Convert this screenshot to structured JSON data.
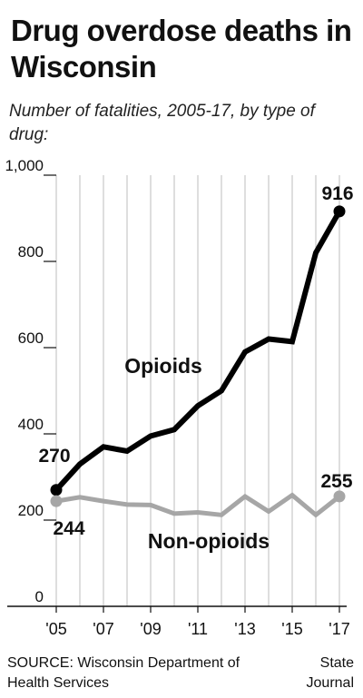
{
  "header": {
    "title": "Drug overdose deaths in Wisconsin",
    "subtitle": "Number of fatalities, 2005-17, by type of drug:"
  },
  "footer": {
    "source": "SOURCE: Wisconsin Department of Health Services",
    "credit": "State Journal"
  },
  "chart_data": {
    "type": "line",
    "title": "Drug overdose deaths in Wisconsin",
    "subtitle": "Number of fatalities, 2005-17, by type of drug:",
    "x": [
      2005,
      2006,
      2007,
      2008,
      2009,
      2010,
      2011,
      2012,
      2013,
      2014,
      2015,
      2016,
      2017
    ],
    "x_tick_labels": [
      "'05",
      "'07",
      "'09",
      "'11",
      "'13",
      "'15",
      "'17"
    ],
    "x_tick_values": [
      2005,
      2007,
      2009,
      2011,
      2013,
      2015,
      2017
    ],
    "y_ticks": [
      0,
      200,
      400,
      600,
      800,
      1000
    ],
    "y_tick_labels": [
      "0",
      "200",
      "400",
      "600",
      "800",
      "1,000"
    ],
    "ylim": [
      0,
      1000
    ],
    "grid": "vertical",
    "series": [
      {
        "name": "Opioids",
        "color": "#000000",
        "values": [
          270,
          330,
          370,
          360,
          395,
          410,
          465,
          500,
          590,
          620,
          614,
          820,
          916
        ],
        "labels": [
          {
            "index": 0,
            "text": "270"
          },
          {
            "index": 12,
            "text": "916"
          }
        ]
      },
      {
        "name": "Non-opioids",
        "color": "#a6a6a6",
        "values": [
          244,
          253,
          244,
          236,
          235,
          215,
          218,
          212,
          255,
          220,
          258,
          212,
          255
        ],
        "labels": [
          {
            "index": 0,
            "text": "244"
          },
          {
            "index": 12,
            "text": "255"
          }
        ]
      }
    ]
  }
}
